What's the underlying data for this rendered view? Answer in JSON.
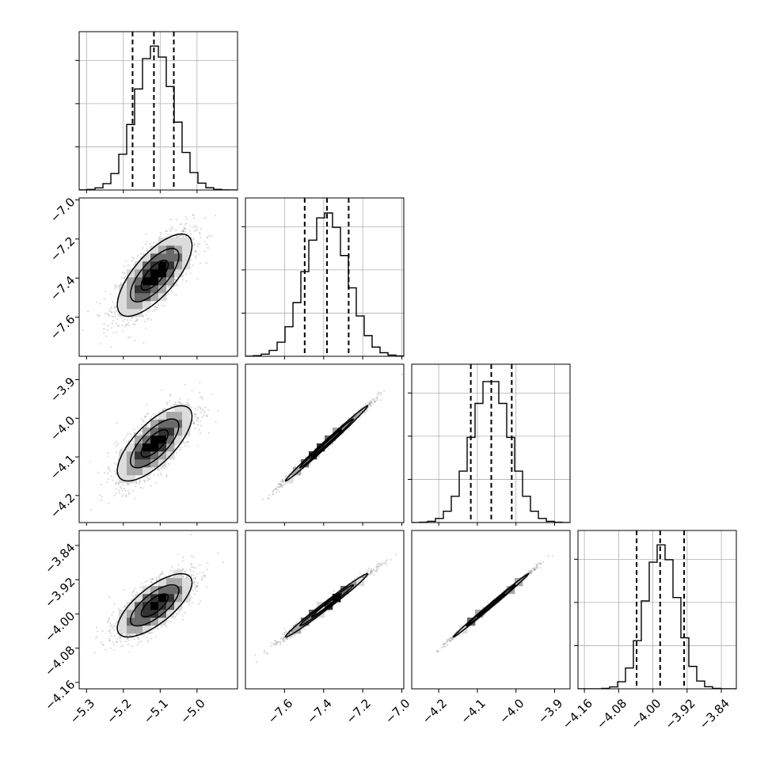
{
  "chart_data": {
    "type": "corner",
    "grid": true,
    "parameters": [
      {
        "mean": -5.115,
        "std": 0.052,
        "range": [
          -5.32,
          -4.89
        ],
        "ticks": [
          -5.3,
          -5.2,
          -5.1,
          -5.0
        ],
        "tick_labels": [
          "−5.3",
          "−5.2",
          "−5.1",
          "−5.0"
        ],
        "quantiles": [
          -5.175,
          -5.117,
          -5.063
        ]
      },
      {
        "mean": -7.385,
        "std": 0.108,
        "range": [
          -7.8,
          -6.99
        ],
        "ticks": [
          -7.6,
          -7.4,
          -7.2,
          -7.0
        ],
        "tick_labels": [
          "−7.6",
          "−7.4",
          "−7.2",
          "−7.0"
        ],
        "quantiles": [
          -7.497,
          -7.383,
          -7.272
        ]
      },
      {
        "mean": -4.065,
        "std": 0.05,
        "range": [
          -4.27,
          -3.86
        ],
        "ticks": [
          -4.2,
          -4.1,
          -4.0,
          -3.9
        ],
        "tick_labels": [
          "−4.2",
          "−4.1",
          "−4.0",
          "−3.9"
        ],
        "quantiles": [
          -4.117,
          -4.064,
          -4.011
        ]
      },
      {
        "mean": -3.98,
        "std": 0.038,
        "range": [
          -4.175,
          -3.805
        ],
        "ticks": [
          -4.16,
          -4.08,
          -4.0,
          -3.92,
          -3.84
        ],
        "tick_labels": [
          "−4.16",
          "−4.08",
          "−4.00",
          "−3.92",
          "−3.84"
        ],
        "quantiles": [
          -4.038,
          -3.983,
          -3.927
        ]
      }
    ],
    "correlations": [
      {
        "pair": [
          1,
          0
        ],
        "rho": 0.72
      },
      {
        "pair": [
          2,
          0
        ],
        "rho": 0.72
      },
      {
        "pair": [
          2,
          1
        ],
        "rho": 0.995
      },
      {
        "pair": [
          3,
          0
        ],
        "rho": 0.72
      },
      {
        "pair": [
          3,
          1
        ],
        "rho": 0.99
      },
      {
        "pair": [
          3,
          2
        ],
        "rho": 0.997
      }
    ],
    "colors": {
      "line": "#000000",
      "points": "#7f7f7f",
      "grid": "#b0b0b0"
    }
  }
}
